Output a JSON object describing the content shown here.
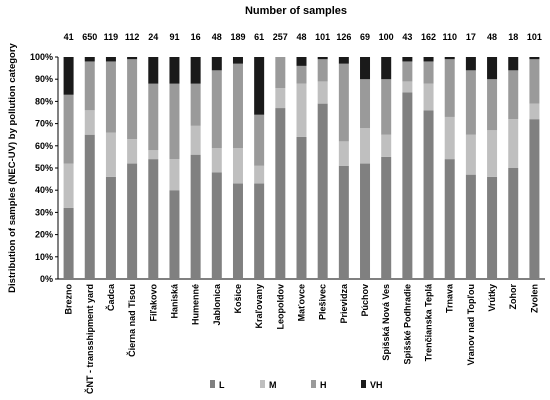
{
  "chart_data": {
    "type": "bar",
    "stacked": true,
    "stack_mode": "percent",
    "title": "Number of samples",
    "ylabel": "Distribution of samples (NEC-UV)  by pollution category",
    "xlabel": "",
    "ylim": [
      0,
      100
    ],
    "yticks": [
      "0%",
      "10%",
      "20%",
      "30%",
      "40%",
      "50%",
      "60%",
      "70%",
      "80%",
      "90%",
      "100%"
    ],
    "grid": false,
    "legend_position": "bottom",
    "categories": [
      "Brezno",
      "ČNT - transshipment yard",
      "Čadca",
      "Čierna nad Tisou",
      "Fiľakovo",
      "Haniská",
      "Humenné",
      "Jablonica",
      "Košice",
      "Kraľovany",
      "Leopoldov",
      "Maťovce",
      "Plešivec",
      "Prievidza",
      "Púchov",
      "Spišská Nová Ves",
      "Spišské Podhradie",
      "Trenčianska Teplá",
      "Trnava",
      "Vranov nad Topľou",
      "Vrútky",
      "Zohor",
      "Zvolen"
    ],
    "sample_counts": [
      "41",
      "650",
      "119",
      "112",
      "24",
      "91",
      "16",
      "48",
      "189",
      "61",
      "257",
      "48",
      "101",
      "126",
      "69",
      "100",
      "43",
      "162",
      "110",
      "17",
      "48",
      "18",
      "101"
    ],
    "series": [
      {
        "name": "L",
        "color": "#808080",
        "values": [
          32,
          65,
          46,
          52,
          54,
          40,
          56,
          48,
          43,
          43,
          77,
          64,
          79,
          51,
          52,
          55,
          84,
          76,
          54,
          47,
          46,
          50,
          72
        ]
      },
      {
        "name": "M",
        "color": "#bfbfbf",
        "values": [
          20,
          11,
          20,
          11,
          4,
          14,
          13,
          11,
          16,
          8,
          9,
          24,
          10,
          11,
          16,
          10,
          5,
          12,
          19,
          18,
          21,
          22,
          7
        ]
      },
      {
        "name": "H",
        "color": "#9a9a9a",
        "values": [
          31,
          22,
          32,
          36,
          30,
          34,
          19,
          35,
          38,
          23,
          14,
          8,
          10,
          35,
          22,
          25,
          9,
          10,
          26,
          29,
          23,
          22,
          20
        ]
      },
      {
        "name": "VH",
        "color": "#1a1a1a",
        "values": [
          17,
          2,
          2,
          1,
          12,
          12,
          12,
          6,
          3,
          26,
          0,
          4,
          1,
          3,
          10,
          10,
          2,
          2,
          1,
          6,
          10,
          6,
          1
        ]
      }
    ]
  }
}
